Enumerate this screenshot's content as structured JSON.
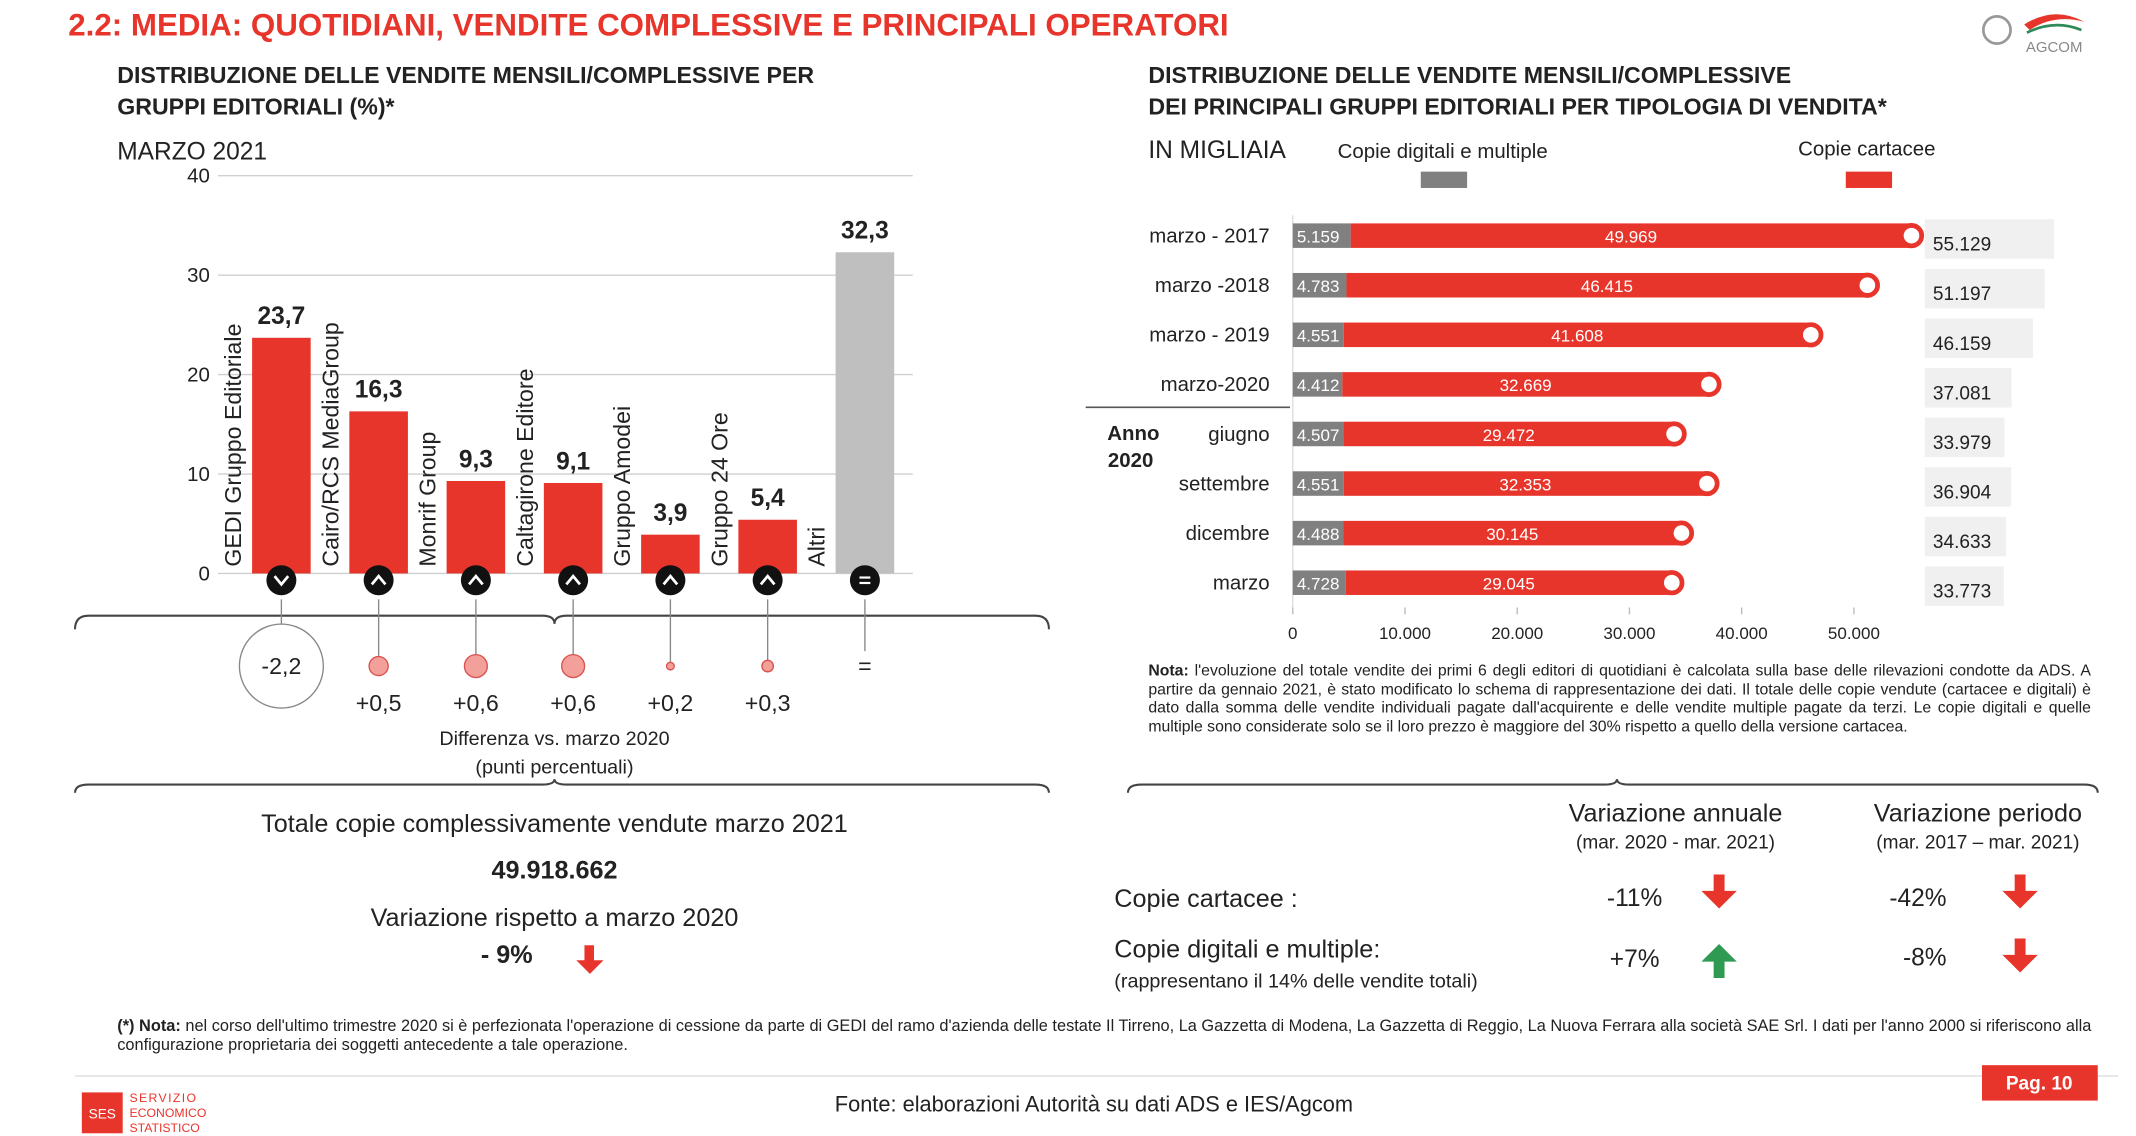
{
  "header": {
    "title": "2.2: MEDIA: QUOTIDIANI, VENDITE COMPLESSIVE E PRINCIPALI OPERATORI",
    "logo": "AGCOM"
  },
  "chart_data": [
    {
      "type": "bar",
      "title_lines": [
        "DISTRIBUZIONE DELLE VENDITE MENSILI/COMPLESSIVE PER",
        "GRUPPI EDITORIALI (%)*"
      ],
      "subtitle": "MARZO 2021",
      "categories": [
        "GEDI Gruppo Editoriale",
        "Cairo/RCS MediaGroup",
        "Monrif Group",
        "Caltagirone Editore",
        "Gruppo Amodei",
        "Gruppo 24 Ore",
        "Altri"
      ],
      "values": [
        23.7,
        16.3,
        9.3,
        9.1,
        3.9,
        5.4,
        32.3
      ],
      "value_labels": [
        "23,7",
        "16,3",
        "9,3",
        "9,1",
        "3,9",
        "5,4",
        "32,3"
      ],
      "colors": [
        "#e8352b",
        "#e8352b",
        "#e8352b",
        "#e8352b",
        "#e8352b",
        "#e8352b",
        "#bfbfbf"
      ],
      "ylim": [
        0,
        40
      ],
      "yticks": [
        0,
        10,
        20,
        30,
        40
      ],
      "grid": true,
      "difference": {
        "values": [
          -2.2,
          0.5,
          0.6,
          0.6,
          0.2,
          0.3,
          0
        ],
        "value_labels": [
          "-2,2",
          "+0,5",
          "+0,6",
          "+0,6",
          "+0,2",
          "+0,3",
          "="
        ],
        "title": "Differenza vs. marzo 2020",
        "subtitle": "(punti percentuali)"
      }
    },
    {
      "type": "barh",
      "title_lines": [
        "DISTRIBUZIONE DELLE VENDITE MENSILI/COMPLESSIVE",
        "DEI PRINCIPALI GRUPPI EDITORIALI PER TIPOLOGIA DI VENDITA*"
      ],
      "subtitle": "IN MIGLIAIA",
      "categories": [
        "marzo - 2017",
        "marzo -2018",
        "marzo - 2019",
        "marzo-2020",
        "giugno",
        "settembre",
        "dicembre",
        "marzo"
      ],
      "group_label": [
        "Anno",
        "2020"
      ],
      "series": [
        {
          "name": "Copie digitali e multiple",
          "color": "#808080",
          "values": [
            5159,
            4783,
            4551,
            4412,
            4507,
            4551,
            4488,
            4728
          ],
          "value_labels": [
            "5.159",
            "4.783",
            "4.551",
            "4.412",
            "4.507",
            "4.551",
            "4.488",
            "4.728"
          ]
        },
        {
          "name": "Copie cartacee",
          "color": "#e8352b",
          "values": [
            49969,
            46415,
            41608,
            32669,
            29472,
            32353,
            30145,
            29045
          ],
          "value_labels": [
            "49.969",
            "46.415",
            "41.608",
            "32.669",
            "29.472",
            "32.353",
            "30.145",
            "29.045"
          ]
        }
      ],
      "totals": {
        "values": [
          55129,
          51197,
          46159,
          37081,
          33979,
          36904,
          34633,
          33773
        ],
        "value_labels": [
          "55.129",
          "51.197",
          "46.159",
          "37.081",
          "33.979",
          "36.904",
          "34.633",
          "33.773"
        ]
      },
      "xlim": [
        0,
        50000
      ],
      "xticks": [
        0,
        {
          "value": 10000,
          "label": "10.000"
        },
        {
          "value": 20000,
          "label": "20.000"
        },
        {
          "value": 30000,
          "label": "30.000"
        },
        {
          "value": 40000,
          "label": "40.000"
        },
        {
          "value": 50000,
          "label": "50.000"
        }
      ],
      "note": {
        "label": "Nota:",
        "text": "l'evoluzione del totale vendite dei primi 6 degli editori di quotidiani è calcolata sulla base delle rilevazioni condotte da ADS. A partire da gennaio 2021, è stato modificato lo schema di rappresentazione dei dati. Il totale delle copie vendute (cartacee e digitali) è dato dalla somma delle vendite individuali pagate dall'acquirente e delle vendite multiple pagate da terzi. Le copie digitali e quelle multiple sono considerate solo se il loro prezzo è maggiore del 30% rispetto a quello della versione cartacea."
      }
    }
  ],
  "summary": {
    "total_label": "Totale copie complessivamente vendute marzo 2021",
    "total_value": "49.918.662",
    "change_label": "Variazione rispetto a marzo 2020",
    "change_value": "- 9%"
  },
  "variation_table": {
    "headers": [
      {
        "title": "Variazione annuale",
        "period": "(mar. 2020 - mar. 2021)"
      },
      {
        "title": "Variazione periodo",
        "period": "(mar. 2017 – mar. 2021)"
      }
    ],
    "rows": [
      {
        "label": "Copie cartacee :",
        "values": [
          "-11%",
          "-42%"
        ]
      },
      {
        "label": "Copie digitali e multiple:",
        "note": "(rappresentano il 14% delle vendite totali)",
        "values": [
          "+7%",
          "-8%"
        ]
      }
    ]
  },
  "footnote": {
    "label": "(*) Nota:",
    "text": "nel corso dell'ultimo trimestre 2020 si è perfezionata l'operazione di cessione da parte di GEDI del ramo d'azienda delle testate Il Tirreno, La Gazzetta di Modena, La Gazzetta di Reggio, La Nuova Ferrara alla società SAE Srl. I dati per l'anno 2000 si riferiscono alla configurazione proprietaria dei soggetti antecedente a tale operazione."
  },
  "footer": {
    "source": "Fonte: elaborazioni Autorità su dati ADS e IES/Agcom",
    "page": "Pag. 10",
    "logo_abbr": "SES",
    "logo_lines": [
      "SERVIZIO",
      "ECONOMICO",
      "STATISTICO"
    ]
  }
}
